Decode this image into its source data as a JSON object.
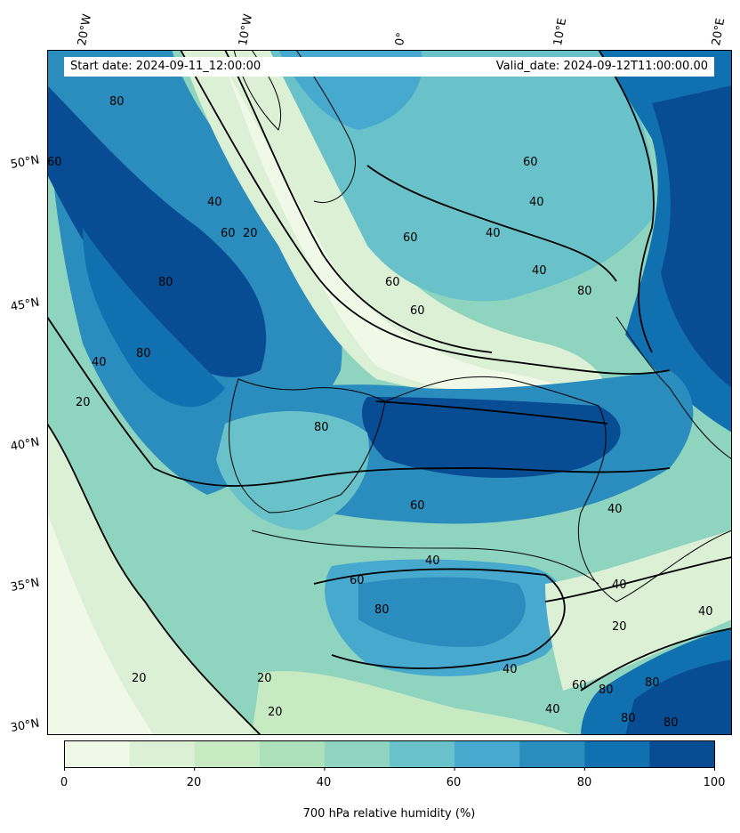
{
  "banner": {
    "start": "Start date: 2024-09-11_12:00:00",
    "valid": "Valid_date: 2024-09-12T11:00:00.00"
  },
  "longitude_labels": [
    "20°W",
    "10°W",
    "0°",
    "10°E",
    "20°E"
  ],
  "latitude_labels": [
    "50°N",
    "45°N",
    "40°N",
    "35°N",
    "30°N"
  ],
  "colorbar": {
    "title": "700 hPa relative humidity (%)",
    "ticks": [
      "0",
      "20",
      "40",
      "60",
      "80",
      "100"
    ],
    "levels": [
      0,
      10,
      20,
      30,
      40,
      50,
      60,
      70,
      80,
      90,
      100
    ],
    "colors": [
      "#f0f9e8",
      "#dcf0d6",
      "#c8eac2",
      "#ace0bb",
      "#8ed4be",
      "#69c2c9",
      "#48a9cf",
      "#2b8cbe",
      "#1170b0",
      "#084c93"
    ]
  },
  "contour_labels": [
    "20",
    "40",
    "60",
    "80"
  ]
}
